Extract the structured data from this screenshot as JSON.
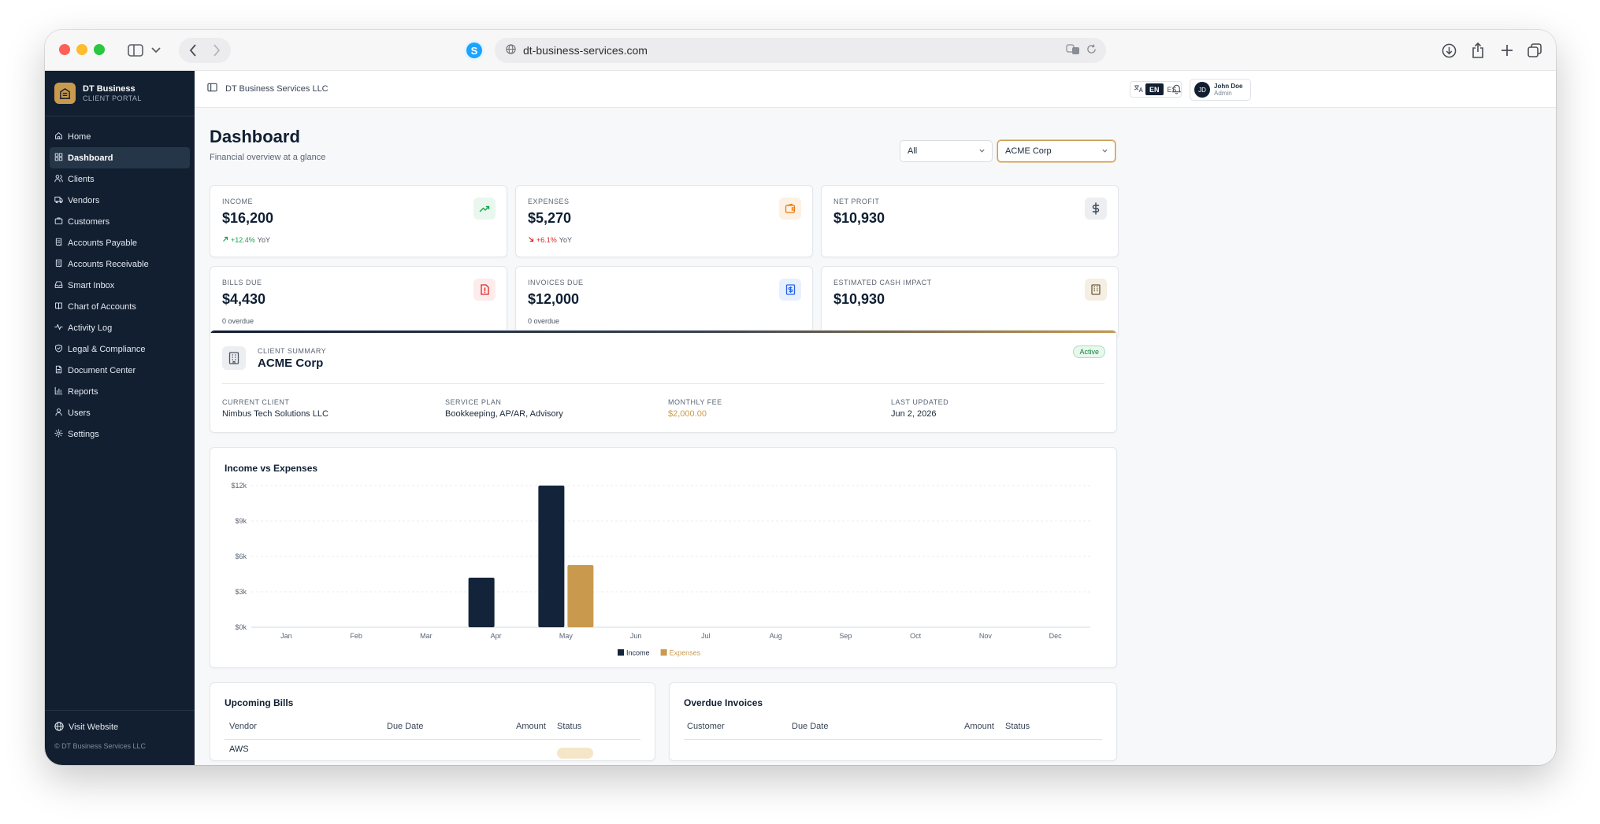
{
  "browser": {
    "url": "dt-business-services.com",
    "favicon_letter": "S"
  },
  "sidebar": {
    "brand_name": "DT Business",
    "brand_sub": "CLIENT PORTAL",
    "items": [
      {
        "label": "Home",
        "icon": "home-icon"
      },
      {
        "label": "Dashboard",
        "icon": "grid-icon",
        "active": true
      },
      {
        "label": "Clients",
        "icon": "users-icon"
      },
      {
        "label": "Vendors",
        "icon": "truck-icon"
      },
      {
        "label": "Customers",
        "icon": "briefcase-icon"
      },
      {
        "label": "Accounts Payable",
        "icon": "receipt-icon"
      },
      {
        "label": "Accounts Receivable",
        "icon": "receipt-icon"
      },
      {
        "label": "Smart Inbox",
        "icon": "inbox-icon"
      },
      {
        "label": "Chart of Accounts",
        "icon": "book-icon"
      },
      {
        "label": "Activity Log",
        "icon": "activity-icon"
      },
      {
        "label": "Legal & Compliance",
        "icon": "shield-icon"
      },
      {
        "label": "Document Center",
        "icon": "file-icon"
      },
      {
        "label": "Reports",
        "icon": "bar-chart-icon"
      },
      {
        "label": "Users",
        "icon": "user-icon"
      },
      {
        "label": "Settings",
        "icon": "gear-icon"
      }
    ],
    "visit_website": "Visit Website",
    "copyright": "© DT Business Services LLC"
  },
  "topbar": {
    "org": "DT Business Services LLC",
    "lang_options": [
      "EN",
      "ES"
    ],
    "lang_selected": "EN",
    "user_initials": "JD",
    "user_name": "John Doe",
    "user_role": "Admin"
  },
  "page": {
    "title": "Dashboard",
    "subtitle": "Financial overview at a glance",
    "period_filter": "All",
    "client_filter": "ACME Corp"
  },
  "kpis": [
    {
      "label": "INCOME",
      "value": "$16,200",
      "change": "+12.4%",
      "change_dir": "up",
      "change_suffix": "YoY",
      "icon": "trend-up-icon",
      "icon_color": "#16a34a",
      "icon_bg": "#e9f7ef"
    },
    {
      "label": "EXPENSES",
      "value": "$5,270",
      "change": "+6.1%",
      "change_dir": "down",
      "change_suffix": "YoY",
      "icon": "wallet-icon",
      "icon_color": "#ea7a12",
      "icon_bg": "#fdf1e4"
    },
    {
      "label": "NET PROFIT",
      "value": "$10,930",
      "icon": "dollar-icon",
      "icon_color": "#3a4556",
      "icon_bg": "#eceef1"
    },
    {
      "label": "BILLS DUE",
      "value": "$4,430",
      "foot": "0 overdue",
      "icon": "alert-file-icon",
      "icon_color": "#dc2626",
      "icon_bg": "#fdecec"
    },
    {
      "label": "INVOICES DUE",
      "value": "$12,000",
      "foot": "0 overdue",
      "icon": "invoice-dollar-icon",
      "icon_color": "#2563eb",
      "icon_bg": "#e8f0fd"
    },
    {
      "label": "ESTIMATED CASH IMPACT",
      "value": "$10,930",
      "icon": "building-icon",
      "icon_color": "#6b5a3a",
      "icon_bg": "#f5eee2"
    }
  ],
  "client_summary": {
    "label": "CLIENT SUMMARY",
    "name": "ACME Corp",
    "status": "Active",
    "fields": [
      {
        "label": "CURRENT CLIENT",
        "value": "Nimbus Tech Solutions LLC"
      },
      {
        "label": "SERVICE PLAN",
        "value": "Bookkeeping, AP/AR, Advisory"
      },
      {
        "label": "MONTHLY FEE",
        "value": "$2,000.00"
      },
      {
        "label": "LAST UPDATED",
        "value": "Jun 2, 2026"
      }
    ]
  },
  "chart_data": {
    "type": "bar",
    "title": "Income vs Expenses",
    "categories": [
      "Jan",
      "Feb",
      "Mar",
      "Apr",
      "May",
      "Jun",
      "Jul",
      "Aug",
      "Sep",
      "Oct",
      "Nov",
      "Dec"
    ],
    "series": [
      {
        "name": "Income",
        "color": "#13233a",
        "values": [
          0,
          0,
          0,
          4200,
          12000,
          0,
          0,
          0,
          0,
          0,
          0,
          0
        ]
      },
      {
        "name": "Expenses",
        "color": "#c99a4e",
        "values": [
          0,
          0,
          0,
          0,
          5270,
          0,
          0,
          0,
          0,
          0,
          0,
          0
        ]
      }
    ],
    "yticks": [
      "$0k",
      "$3k",
      "$6k",
      "$9k",
      "$12k"
    ],
    "ylim": [
      0,
      12000
    ],
    "grid": true,
    "legend": "bottom-center"
  },
  "upcoming_bills": {
    "title": "Upcoming Bills",
    "columns": [
      "Vendor",
      "Due Date",
      "Amount",
      "Status"
    ],
    "rows": [
      {
        "vendor": "AWS"
      }
    ]
  },
  "overdue_invoices": {
    "title": "Overdue Invoices",
    "columns": [
      "Customer",
      "Due Date",
      "Amount",
      "Status"
    ]
  }
}
